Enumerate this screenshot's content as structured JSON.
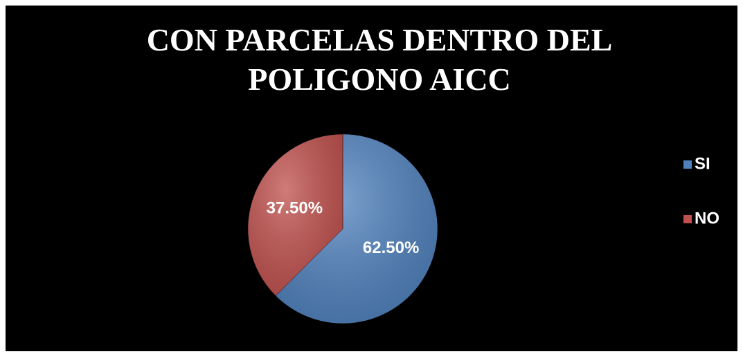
{
  "chart_data": {
    "type": "pie",
    "title": [
      "CON PARCELAS DENTRO DEL",
      "POLIGONO AICC"
    ],
    "categories": [
      "SI",
      "NO"
    ],
    "values": [
      62.5,
      37.5
    ],
    "value_labels": [
      "62.50%",
      "37.50%"
    ],
    "colors": [
      "#4f81bd",
      "#c0504d"
    ],
    "legend": "right"
  }
}
